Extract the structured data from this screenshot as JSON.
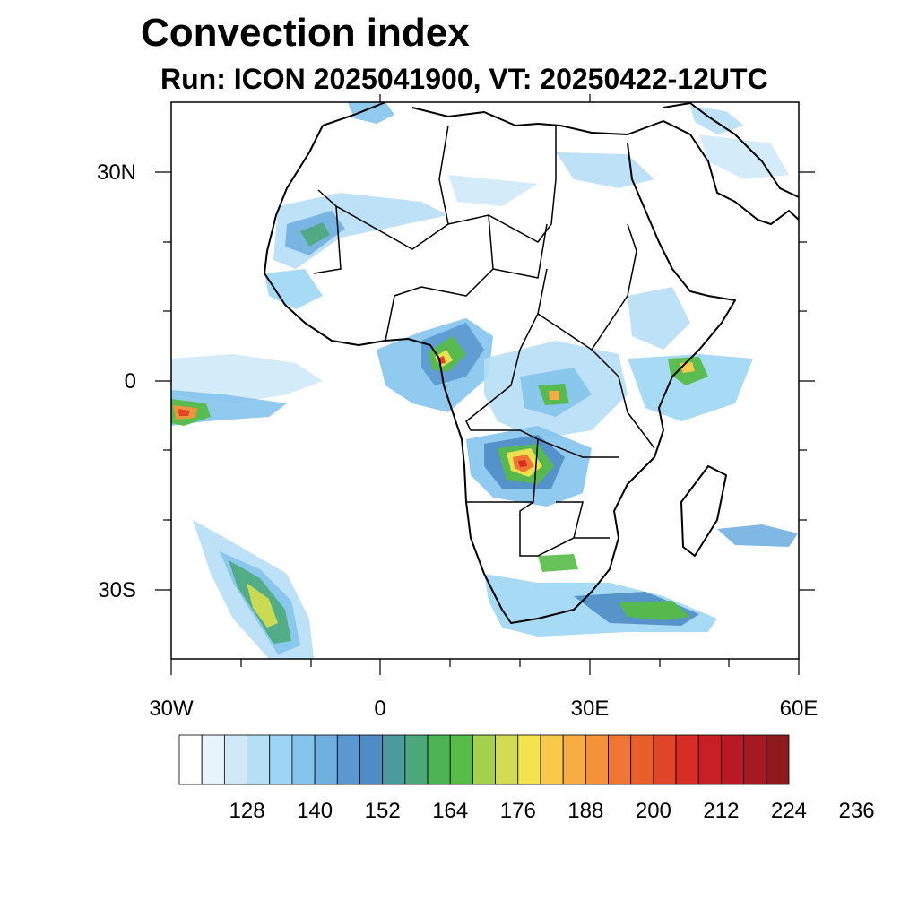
{
  "title": "Convection index",
  "subtitle": "Run: ICON 2025041900,  VT: 20250422-12UTC",
  "map": {
    "lon_range": [
      -30,
      60
    ],
    "lat_range": [
      -40,
      40
    ],
    "lat_ticks": [
      {
        "lat": 30,
        "label": "30N"
      },
      {
        "lat": 0,
        "label": "0"
      },
      {
        "lat": -30,
        "label": "30S"
      }
    ],
    "lon_ticks": [
      {
        "lon": -30,
        "label": "30W"
      },
      {
        "lon": 0,
        "label": "0"
      },
      {
        "lon": 30,
        "label": "30E"
      },
      {
        "lon": 60,
        "label": "60E"
      }
    ],
    "coastline_color": "#000000",
    "border_color": "#000000"
  },
  "colorbar": {
    "colors": [
      "#ffffff",
      "#e8f4fc",
      "#cfe9f8",
      "#b6def5",
      "#9dd6f4",
      "#84c4ec",
      "#70b0e0",
      "#5a98cf",
      "#4f8cc4",
      "#4a9a9e",
      "#4ba87a",
      "#4db456",
      "#56bb47",
      "#a4cf4f",
      "#d2dc52",
      "#f3e34f",
      "#f8c94b",
      "#f8ad44",
      "#f4923a",
      "#ee7833",
      "#e85f2c",
      "#e04528",
      "#d82c26",
      "#c81f25",
      "#b71a25",
      "#a51a22",
      "#8c1a1c"
    ],
    "labels": [
      "128",
      "140",
      "152",
      "164",
      "176",
      "188",
      "200",
      "212",
      "224",
      "236"
    ]
  }
}
